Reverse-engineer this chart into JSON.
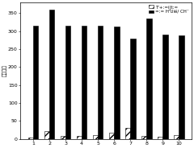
{
  "categories": [
    "1",
    "2",
    "3",
    "4",
    "5",
    "6",
    "7",
    "8",
    "9",
    "10"
  ],
  "hatched_values": [
    5,
    22,
    8,
    8,
    10,
    18,
    30,
    8,
    7,
    10
  ],
  "solid_values": [
    315,
    360,
    315,
    315,
    315,
    312,
    280,
    335,
    290,
    288
  ],
  "legend_hatched": "T'+:=i|t:=",
  "legend_solid": "=:= H'Uié/ CH⁻",
  "ylabel": "荧光强度",
  "ylim": [
    0,
    380
  ],
  "yticks": [
    0,
    50,
    100,
    150,
    200,
    250,
    300,
    350
  ],
  "bar_width": 0.32,
  "hatched_color": "white",
  "hatched_edgecolor": "black",
  "hatched_hatch": "////",
  "solid_color": "black",
  "background_color": "#ffffff",
  "axis_fontsize": 4.5,
  "tick_fontsize": 4.5,
  "legend_fontsize": 4.0
}
